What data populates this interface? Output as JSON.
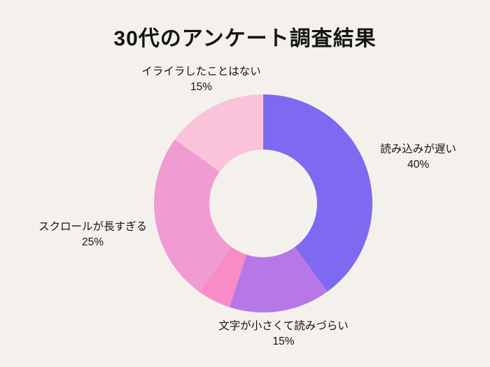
{
  "page": {
    "background_color": "#F4F1EC",
    "text_color": "#141414"
  },
  "title": "30代のアンケート調査結果",
  "chart_data": {
    "type": "pie",
    "variant": "donut",
    "title": "30代のアンケート調査結果",
    "unit": "%",
    "direction": "clockwise",
    "start_angle_deg": 0,
    "inner_radius_ratio": 0.5,
    "legend": "none",
    "labels_position": "outside",
    "categories": [
      "読み込みが遅い",
      "文字が小さくて読みづらい",
      "",
      "スクロールが長すぎる",
      "イライラしたことはない"
    ],
    "values": [
      40,
      15,
      5,
      25,
      15
    ],
    "segments": [
      {
        "label": "読み込みが遅い",
        "value": 40,
        "pct_label": "40%",
        "color": "#7D6AF0"
      },
      {
        "label": "文字が小さくて読みづらい",
        "value": 15,
        "pct_label": "15%",
        "color": "#B678E6"
      },
      {
        "label": "",
        "value": 5,
        "pct_label": "",
        "color": "#F98CC6"
      },
      {
        "label": "スクロールが長すぎる",
        "value": 25,
        "pct_label": "25%",
        "color": "#F09CD3"
      },
      {
        "label": "イライラしたことはない",
        "value": 15,
        "pct_label": "15%",
        "color": "#FAC3DA"
      }
    ]
  }
}
